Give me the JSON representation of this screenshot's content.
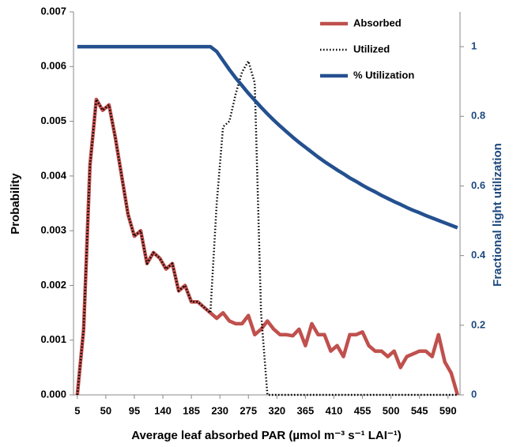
{
  "chart_data": {
    "type": "line",
    "xlabel": "Average  leaf absorbed PAR (µmol m⁻³ s⁻¹ LAI⁻¹)",
    "ylabel": "Probability",
    "y2label": "Fractional  light  utilization",
    "x": [
      5,
      15,
      25,
      35,
      45,
      55,
      65,
      75,
      85,
      95,
      105,
      115,
      125,
      135,
      145,
      155,
      165,
      175,
      185,
      195,
      205,
      215,
      225,
      235,
      245,
      255,
      265,
      275,
      285,
      295,
      305,
      315,
      325,
      335,
      345,
      355,
      365,
      375,
      385,
      395,
      405,
      415,
      425,
      435,
      445,
      455,
      465,
      475,
      485,
      495,
      505,
      515,
      525,
      535,
      545,
      555,
      565,
      575,
      585,
      595,
      605
    ],
    "xlim": [
      -1,
      609
    ],
    "xticks": [
      5,
      50,
      95,
      140,
      185,
      230,
      275,
      320,
      365,
      410,
      455,
      500,
      545,
      590
    ],
    "ylim": [
      0,
      0.007
    ],
    "yticks": [
      {
        "value": 0,
        "label": "0.000"
      },
      0.001,
      0.002,
      0.003,
      0.004,
      0.005,
      0.006,
      0.007
    ],
    "y2lim": [
      0,
      1.1
    ],
    "y2ticks": [
      0,
      0.2,
      0.4,
      0.6,
      0.8,
      1
    ],
    "legend": "top-right",
    "series": [
      {
        "name": "Absorbed",
        "color": "#c0504d",
        "style": "solid",
        "values": [
          0,
          0.0012,
          0.0042,
          0.0054,
          0.0052,
          0.0053,
          0.0047,
          0.004,
          0.0033,
          0.0029,
          0.003,
          0.0024,
          0.0026,
          0.0025,
          0.0023,
          0.0024,
          0.0019,
          0.002,
          0.0017,
          0.0017,
          0.0016,
          0.0015,
          0.0014,
          0.0015,
          0.00135,
          0.0013,
          0.0013,
          0.00145,
          0.0011,
          0.0012,
          0.00135,
          0.0012,
          0.0011,
          0.0011,
          0.00108,
          0.0012,
          0.0009,
          0.0013,
          0.0011,
          0.0011,
          0.0008,
          0.0009,
          0.0007,
          0.0011,
          0.0011,
          0.00115,
          0.0009,
          0.0008,
          0.0008,
          0.0007,
          0.0008,
          0.0005,
          0.0007,
          0.00075,
          0.0008,
          0.0008,
          0.0007,
          0.0011,
          0.0006,
          0.0004,
          0
        ]
      },
      {
        "name": "Utilized",
        "color": "#000000",
        "style": "dotted",
        "values": [
          0,
          0.0012,
          0.0042,
          0.0054,
          0.0052,
          0.0053,
          0.0047,
          0.004,
          0.0033,
          0.0029,
          0.003,
          0.0024,
          0.0026,
          0.0025,
          0.0023,
          0.0024,
          0.0019,
          0.002,
          0.0017,
          0.0017,
          0.0016,
          0.0015,
          0.0035,
          0.0049,
          0.005,
          0.0055,
          0.0059,
          0.0061,
          0.0057,
          0.0015,
          0,
          0,
          0,
          0,
          0,
          0,
          0,
          0,
          0,
          0,
          0,
          0,
          0,
          0,
          0,
          0,
          0,
          0,
          0,
          0,
          0,
          0,
          0,
          0,
          0,
          0,
          0,
          0,
          0,
          0,
          0
        ]
      },
      {
        "name": "% Utilization",
        "color": "#24508f",
        "style": "solid",
        "axis": "y2",
        "values": [
          1,
          1,
          1,
          1,
          1,
          1,
          1,
          1,
          1,
          1,
          1,
          1,
          1,
          1,
          1,
          1,
          1,
          1,
          1,
          1,
          1,
          1,
          0.986,
          0.96,
          0.934,
          0.91,
          0.888,
          0.866,
          0.846,
          0.826,
          0.807,
          0.789,
          0.772,
          0.756,
          0.74,
          0.725,
          0.711,
          0.697,
          0.683,
          0.67,
          0.658,
          0.646,
          0.635,
          0.623,
          0.613,
          0.602,
          0.592,
          0.583,
          0.573,
          0.564,
          0.555,
          0.547,
          0.538,
          0.53,
          0.523,
          0.515,
          0.508,
          0.501,
          0.494,
          0.487,
          0.48
        ]
      }
    ]
  }
}
